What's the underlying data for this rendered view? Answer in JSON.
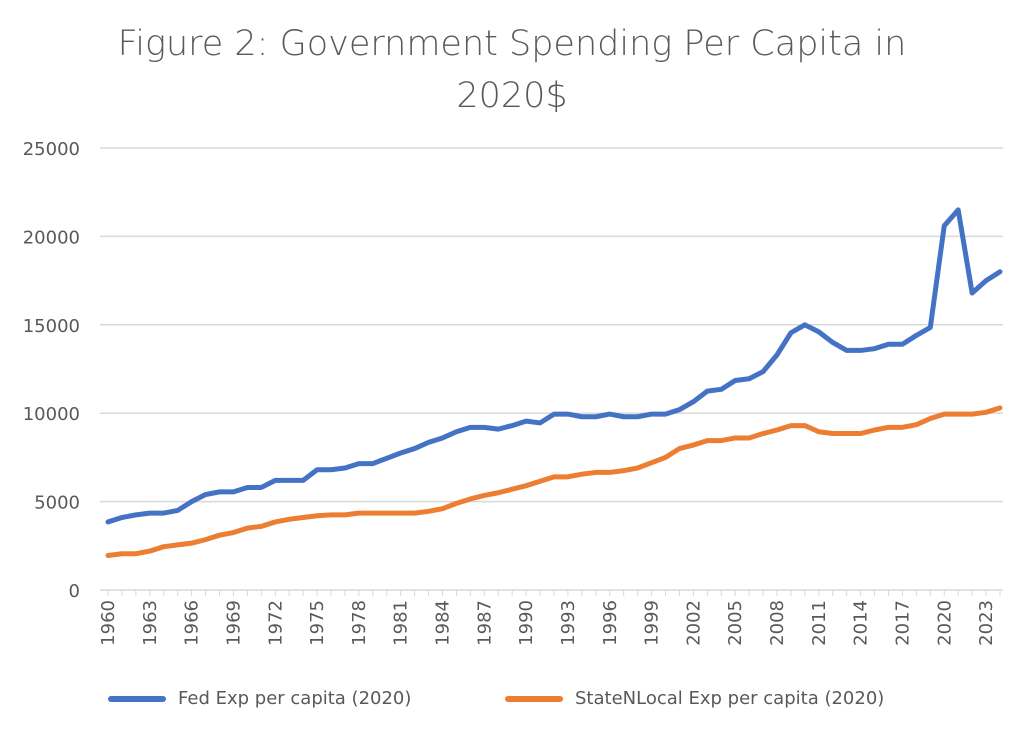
{
  "chart_data": {
    "type": "line",
    "title": "Figure 2:  Government Spending Per Capita in 2020$",
    "title_lines": [
      "Figure 2:  Government Spending Per Capita in",
      "2020$"
    ],
    "xlabel": "",
    "ylabel": "",
    "ylim": [
      0,
      25000
    ],
    "yticks": [
      "0",
      "5000",
      "10000",
      "15000",
      "20000",
      "25000"
    ],
    "xticks": [
      "1960",
      "1963",
      "1966",
      "1969",
      "1972",
      "1975",
      "1978",
      "1981",
      "1984",
      "1987",
      "1990",
      "1993",
      "1996",
      "1999",
      "2002",
      "2005",
      "2008",
      "2011",
      "2014",
      "2017",
      "2020",
      "2023"
    ],
    "grid": true,
    "legend_position": "bottom",
    "x": [
      1960,
      1961,
      1962,
      1963,
      1964,
      1965,
      1966,
      1967,
      1968,
      1969,
      1970,
      1971,
      1972,
      1973,
      1974,
      1975,
      1976,
      1977,
      1978,
      1979,
      1980,
      1981,
      1982,
      1983,
      1984,
      1985,
      1986,
      1987,
      1988,
      1989,
      1990,
      1991,
      1992,
      1993,
      1994,
      1995,
      1996,
      1997,
      1998,
      1999,
      2000,
      2001,
      2002,
      2003,
      2004,
      2005,
      2006,
      2007,
      2008,
      2009,
      2010,
      2011,
      2012,
      2013,
      2014,
      2015,
      2016,
      2017,
      2018,
      2019,
      2020,
      2021,
      2022,
      2023,
      2024
    ],
    "series": [
      {
        "name": "Fed Exp per capita (2020)",
        "color": "#4472C4",
        "values": [
          3850,
          4100,
          4250,
          4350,
          4350,
          4500,
          5000,
          5400,
          5550,
          5550,
          5800,
          5800,
          6200,
          6200,
          6200,
          6800,
          6800,
          6900,
          7150,
          7150,
          7450,
          7750,
          8000,
          8350,
          8600,
          8950,
          9200,
          9200,
          9100,
          9300,
          9550,
          9450,
          9950,
          9950,
          9800,
          9800,
          9950,
          9800,
          9800,
          9950,
          9950,
          10200,
          10650,
          11250,
          11350,
          11850,
          11950,
          12350,
          13300,
          14550,
          15000,
          14600,
          14000,
          13550,
          13550,
          13650,
          13900,
          13900,
          14400,
          14850,
          20600,
          21500,
          16800,
          17500,
          18000
        ]
      },
      {
        "name": "StateNLocal Exp per capita (2020)",
        "color": "#ED7D31",
        "values": [
          1950,
          2050,
          2050,
          2200,
          2450,
          2550,
          2650,
          2850,
          3100,
          3250,
          3500,
          3600,
          3850,
          4000,
          4100,
          4200,
          4250,
          4250,
          4350,
          4350,
          4350,
          4350,
          4350,
          4450,
          4600,
          4900,
          5150,
          5350,
          5500,
          5700,
          5900,
          6150,
          6400,
          6400,
          6550,
          6650,
          6650,
          6750,
          6900,
          7200,
          7500,
          8000,
          8200,
          8450,
          8450,
          8600,
          8600,
          8850,
          9050,
          9300,
          9300,
          8950,
          8850,
          8850,
          8850,
          9050,
          9200,
          9200,
          9350,
          9700,
          9950,
          9950,
          9950,
          10050,
          10300
        ]
      }
    ]
  }
}
